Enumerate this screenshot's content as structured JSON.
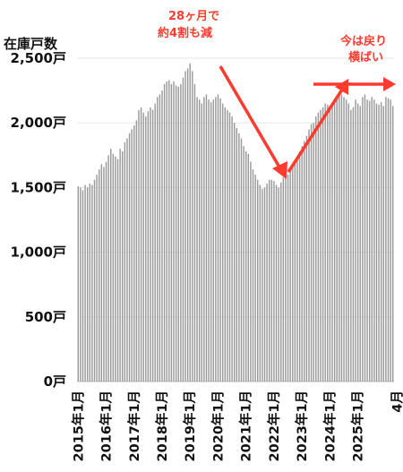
{
  "chart_data": {
    "type": "bar",
    "ylabel": "在庫戸数",
    "ylim": [
      0,
      2500
    ],
    "y_ticks": [
      "0戸",
      "500戸",
      "1,000戸",
      "1,500戸",
      "2,000戸",
      "2,500戸"
    ],
    "y_tick_values": [
      0,
      500,
      1000,
      1500,
      2000,
      2500
    ],
    "x_tick_labels": [
      "2015年1月",
      "2016年1月",
      "2017年1月",
      "2018年1月",
      "2019年1月",
      "2020年1月",
      "2021年1月",
      "2022年1月",
      "2023年1月",
      "2024年1月",
      "2025年1月",
      "4月"
    ],
    "bar_color": "#999999",
    "annotations": [
      {
        "lines": [
          "28ヶ月で",
          "約4割も減"
        ],
        "color": "#ff3b2f"
      },
      {
        "lines": [
          "今は戻り",
          "横ばい"
        ],
        "color": "#ff3b2f"
      }
    ],
    "series": [
      {
        "start": "2015-01",
        "end": "2025-04",
        "values": [
          1510,
          1500,
          1480,
          1520,
          1500,
          1530,
          1520,
          1560,
          1600,
          1640,
          1680,
          1660,
          1700,
          1750,
          1800,
          1760,
          1740,
          1720,
          1800,
          1780,
          1850,
          1880,
          1920,
          1950,
          1980,
          2020,
          2100,
          2120,
          2080,
          2050,
          2090,
          2120,
          2100,
          2150,
          2200,
          2220,
          2250,
          2300,
          2320,
          2330,
          2300,
          2320,
          2290,
          2280,
          2300,
          2350,
          2400,
          2420,
          2460,
          2400,
          2300,
          2200,
          2180,
          2150,
          2200,
          2220,
          2180,
          2160,
          2180,
          2200,
          2220,
          2190,
          2150,
          2120,
          2100,
          2080,
          2050,
          2000,
          1960,
          1920,
          1880,
          1820,
          1780,
          1760,
          1700,
          1640,
          1600,
          1560,
          1520,
          1490,
          1500,
          1530,
          1560,
          1560,
          1550,
          1520,
          1500,
          1540,
          1580,
          1620,
          1600,
          1640,
          1680,
          1700,
          1740,
          1780,
          1820,
          1860,
          1900,
          1950,
          1990,
          2000,
          2050,
          2080,
          2100,
          2120,
          2150,
          2140,
          2130,
          2150,
          2180,
          2200,
          2240,
          2220,
          2200,
          2180,
          2150,
          2100,
          2120,
          2180,
          2150,
          2130,
          2200,
          2220,
          2180,
          2170,
          2200,
          2180,
          2150,
          2140,
          2160,
          2130,
          2200,
          2190,
          2180,
          2130
        ]
      }
    ]
  }
}
